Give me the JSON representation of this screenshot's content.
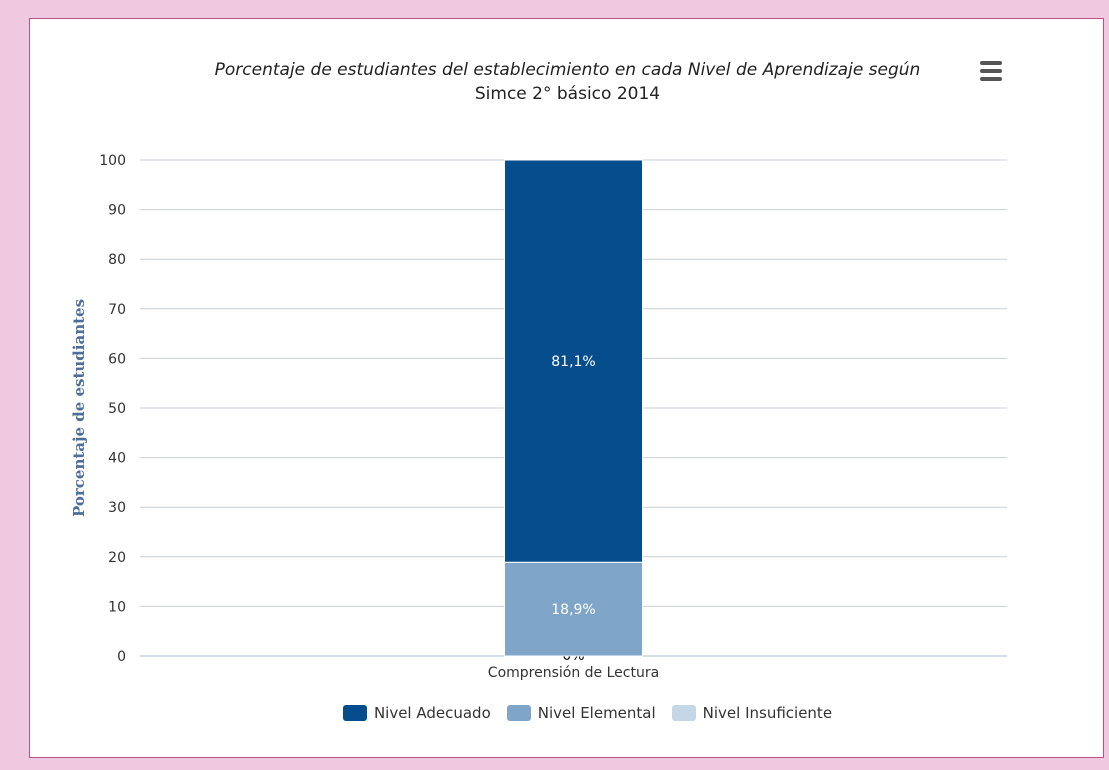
{
  "chart": {
    "title_line1": "Porcentaje de estudiantes del establecimiento en cada Nivel de Aprendizaje según",
    "title_line2": "Simce 2° básico 2014",
    "menu_icon": "hamburger-menu-icon"
  },
  "chart_data": {
    "type": "bar",
    "stacked": true,
    "title": "Porcentaje de estudiantes del establecimiento en cada Nivel de Aprendizaje según Simce 2° básico 2014",
    "xlabel": "",
    "ylabel": "Porcentaje de estudiantes",
    "categories": [
      "Comprensión de Lectura"
    ],
    "ylim": [
      0,
      100
    ],
    "yticks": [
      0,
      10,
      20,
      30,
      40,
      50,
      60,
      70,
      80,
      90,
      100
    ],
    "grid": true,
    "legend_position": "bottom",
    "series": [
      {
        "name": "Nivel Adecuado",
        "values": [
          81.1
        ],
        "label": "81,1%",
        "color": "#064d8e"
      },
      {
        "name": "Nivel Elemental",
        "values": [
          18.9
        ],
        "label": "18,9%",
        "color": "#7fa6c9"
      },
      {
        "name": "Nivel Insuficiente",
        "values": [
          0
        ],
        "label": "0%",
        "color": "#c5d6e7"
      }
    ]
  }
}
